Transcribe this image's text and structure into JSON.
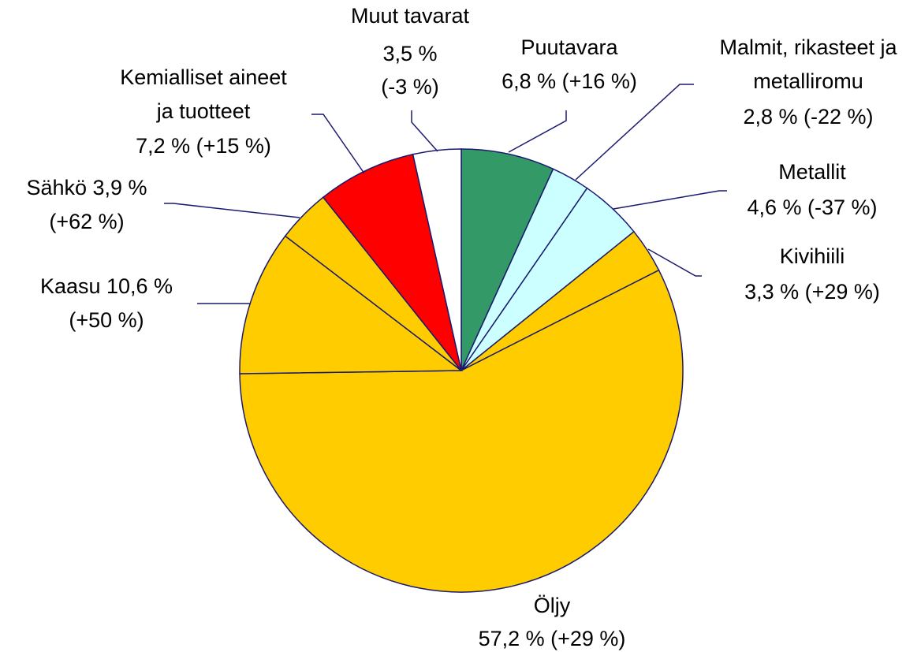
{
  "chart_data": {
    "type": "pie",
    "labels": [
      [
        "Puutavara",
        "6,8 % (+16 %)"
      ],
      [
        "Malmit, rikasteet ja",
        "metalliromu",
        "2,8 % (-22 %)"
      ],
      [
        "Metallit",
        "4,6 % (-37 %)"
      ],
      [
        "Kivihiili",
        "3,3 % (+29 %)"
      ],
      [
        "Öljy",
        "57,2 % (+29 %)"
      ],
      [
        "Kaasu 10,6 %",
        "(+50 %)"
      ],
      [
        "Sähkö 3,9 %",
        "(+62 %)"
      ],
      [
        "Kemialliset aineet",
        "ja tuotteet",
        "7,2 % (+15 %)"
      ],
      [
        "Muut tavarat",
        "3,5 %",
        "(-3 %)"
      ]
    ],
    "values": [
      6.8,
      2.8,
      4.6,
      3.3,
      57.2,
      10.6,
      3.9,
      7.2,
      3.5
    ],
    "colors": [
      "#339966",
      "#ccffff",
      "#ccffff",
      "#ffcc00",
      "#ffcc00",
      "#ffcc00",
      "#ffcc00",
      "#ff0000",
      "#ffffff"
    ]
  }
}
